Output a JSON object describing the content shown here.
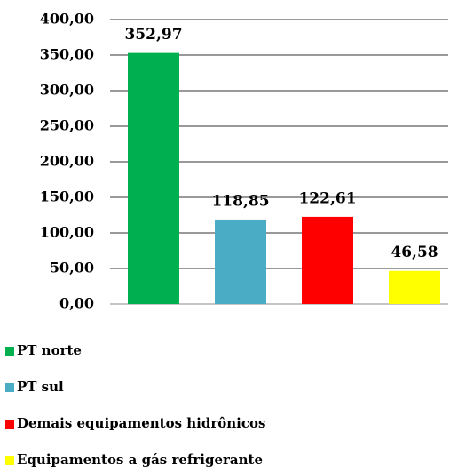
{
  "chart_data": {
    "type": "bar",
    "categories": [
      null
    ],
    "series": [
      {
        "name": "PT norte",
        "color": "#00b050",
        "values": [
          352.97
        ],
        "value_labels": [
          "352,97"
        ]
      },
      {
        "name": "PT sul",
        "color": "#4bacc6",
        "values": [
          118.85
        ],
        "value_labels": [
          "118,85"
        ]
      },
      {
        "name": "Demais equipamentos hidrônicos",
        "color": "#ff0000",
        "values": [
          122.61
        ],
        "value_labels": [
          "122,61"
        ]
      },
      {
        "name": "Equipamentos a gás refrigerante",
        "color": "#ffff00",
        "values": [
          46.58
        ],
        "value_labels": [
          "46,58"
        ]
      }
    ],
    "ylim": [
      0,
      400
    ],
    "yticks": [
      {
        "value": 0,
        "label": "0,00"
      },
      {
        "value": 50,
        "label": "50,00"
      },
      {
        "value": 100,
        "label": "100,00"
      },
      {
        "value": 150,
        "label": "150,00"
      },
      {
        "value": 200,
        "label": "200,00"
      },
      {
        "value": 250,
        "label": "250,00"
      },
      {
        "value": 300,
        "label": "300,00"
      },
      {
        "value": 350,
        "label": "350,00"
      },
      {
        "value": 400,
        "label": "400,00"
      }
    ],
    "grid": true
  }
}
